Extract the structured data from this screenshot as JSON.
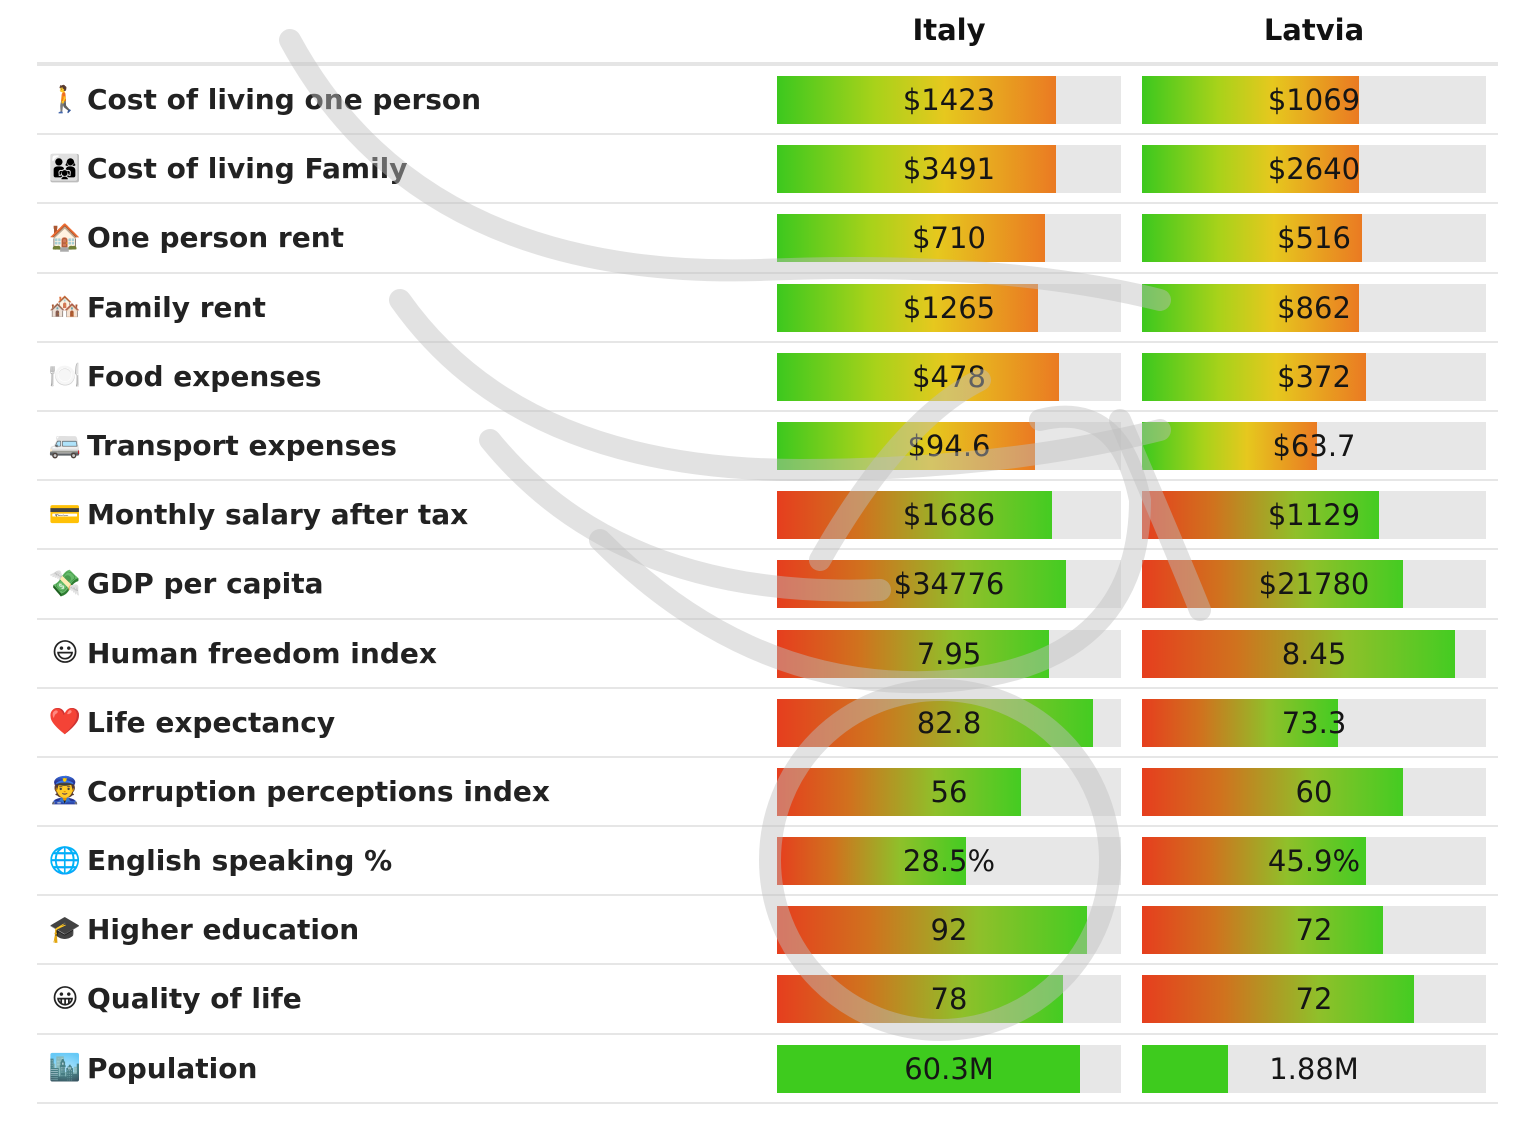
{
  "chart_data": {
    "type": "table",
    "columns": [
      "Italy",
      "Latvia"
    ],
    "rows": [
      {
        "icon": "🚶",
        "icon_name": "walking-person-icon",
        "label": "Cost of living one person",
        "scheme": "cost",
        "values": [
          "$1423",
          "$1069"
        ],
        "fill": [
          0.81,
          0.63
        ]
      },
      {
        "icon": "👨‍👩‍👧",
        "icon_name": "family-icon",
        "label": "Cost of living Family",
        "scheme": "cost",
        "values": [
          "$3491",
          "$2640"
        ],
        "fill": [
          0.81,
          0.63
        ]
      },
      {
        "icon": "🏠",
        "icon_name": "house-icon",
        "label": "One person rent",
        "scheme": "cost",
        "values": [
          "$710",
          "$516"
        ],
        "fill": [
          0.78,
          0.64
        ]
      },
      {
        "icon": "🏘️",
        "icon_name": "houses-icon",
        "label": "Family rent",
        "scheme": "cost",
        "values": [
          "$1265",
          "$862"
        ],
        "fill": [
          0.76,
          0.63
        ]
      },
      {
        "icon": "🍽️",
        "icon_name": "plate-icon",
        "label": "Food expenses",
        "scheme": "cost",
        "values": [
          "$478",
          "$372"
        ],
        "fill": [
          0.82,
          0.65
        ]
      },
      {
        "icon": "🚐",
        "icon_name": "van-icon",
        "label": "Transport expenses",
        "scheme": "cost",
        "values": [
          "$94.6",
          "$63.7"
        ],
        "fill": [
          0.75,
          0.51
        ]
      },
      {
        "icon": "💳",
        "icon_name": "credit-card-icon",
        "label": "Monthly salary after tax",
        "scheme": "good",
        "values": [
          "$1686",
          "$1129"
        ],
        "fill": [
          0.8,
          0.69
        ]
      },
      {
        "icon": "💸",
        "icon_name": "money-wings-icon",
        "label": "GDP per capita",
        "scheme": "good",
        "values": [
          "$34776",
          "$21780"
        ],
        "fill": [
          0.84,
          0.76
        ]
      },
      {
        "icon": "😃",
        "icon_name": "smiley-icon",
        "label": "Human freedom index",
        "scheme": "good",
        "values": [
          "7.95",
          "8.45"
        ],
        "fill": [
          0.79,
          0.91
        ]
      },
      {
        "icon": "❤️",
        "icon_name": "heart-icon",
        "label": "Life expectancy",
        "scheme": "good",
        "values": [
          "82.8",
          "73.3"
        ],
        "fill": [
          0.92,
          0.57
        ]
      },
      {
        "icon": "👮",
        "icon_name": "police-officer-icon",
        "label": "Corruption perceptions index",
        "scheme": "good",
        "values": [
          "56",
          "60"
        ],
        "fill": [
          0.71,
          0.76
        ]
      },
      {
        "icon": "🌐",
        "icon_name": "globe-icon",
        "label": "English speaking %",
        "scheme": "good",
        "values": [
          "28.5%",
          "45.9%"
        ],
        "fill": [
          0.55,
          0.65
        ]
      },
      {
        "icon": "🎓",
        "icon_name": "graduation-cap-icon",
        "label": "Higher education",
        "scheme": "good",
        "values": [
          "92",
          "72"
        ],
        "fill": [
          0.9,
          0.7
        ]
      },
      {
        "icon": "😀",
        "icon_name": "grinning-face-icon",
        "label": "Quality of life",
        "scheme": "good",
        "values": [
          "78",
          "72"
        ],
        "fill": [
          0.83,
          0.79
        ]
      },
      {
        "icon": "🏙️",
        "icon_name": "cityscape-icon",
        "label": "Population",
        "scheme": "pop",
        "values": [
          "60.3M",
          "1.88M"
        ],
        "fill": [
          0.88,
          0.25
        ]
      }
    ]
  }
}
